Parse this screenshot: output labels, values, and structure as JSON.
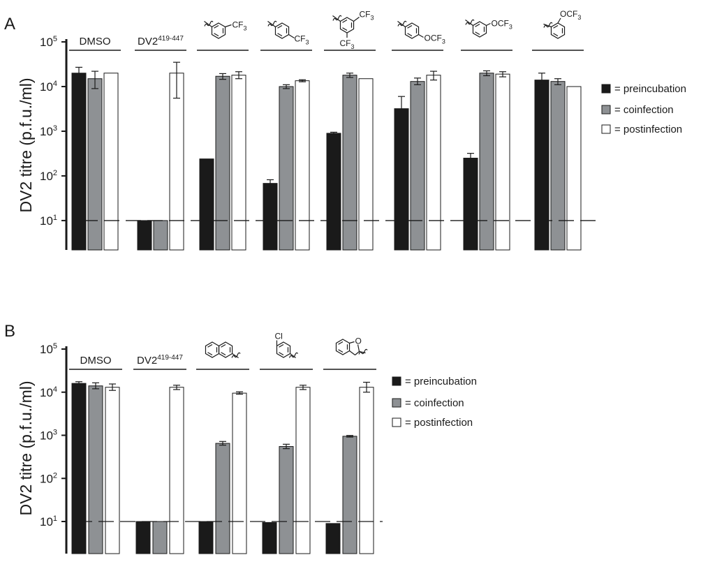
{
  "legend": {
    "preincubation": "= preincubation",
    "coinfection": "= coinfection",
    "postinfection": "= postinfection"
  },
  "colors": {
    "preincubation": "#1a1a1a",
    "coinfection": "#8e9194",
    "postinfection": "#ffffff",
    "axis": "#1a1a1a"
  },
  "chart_data": [
    {
      "type": "bar",
      "panel_label": "A",
      "ylabel": "DV2 titre (p.f.u./ml)",
      "yscale": "log",
      "ylim": [
        2.2,
        100000
      ],
      "yticks": [
        {
          "value": 10,
          "base": "10",
          "exp": "1"
        },
        {
          "value": 100,
          "base": "10",
          "exp": "2"
        },
        {
          "value": 1000,
          "base": "10",
          "exp": "3"
        },
        {
          "value": 10000,
          "base": "10",
          "exp": "4"
        },
        {
          "value": 100000,
          "base": "10",
          "exp": "5"
        }
      ],
      "detection_limit": 10,
      "legend_position": "right",
      "series": [
        {
          "key": "preincubation",
          "name": "= preincubation"
        },
        {
          "key": "coinfection",
          "name": "= coinfection"
        },
        {
          "key": "postinfection",
          "name": "= postinfection"
        }
      ],
      "groups": [
        {
          "label": "DMSO",
          "label_sup": "",
          "structure": "",
          "values": [
            20000,
            15000,
            20000
          ],
          "errors": [
            [
              14000,
              27000
            ],
            [
              9000,
              22000
            ],
            null
          ]
        },
        {
          "label": "DV2",
          "label_sup": "419-447",
          "structure": "",
          "values": [
            10,
            10,
            20000
          ],
          "errors": [
            null,
            null,
            [
              5500,
              35000
            ]
          ]
        },
        {
          "label": "",
          "label_sup": "",
          "structure": "m-CF3-phenyl",
          "struct_text": [
            "CF",
            "3"
          ],
          "values": [
            240,
            17000,
            18000
          ],
          "errors": [
            null,
            [
              14500,
              19500
            ],
            [
              15000,
              21500
            ]
          ]
        },
        {
          "label": "",
          "label_sup": "",
          "structure": "p-CF3-phenyl",
          "struct_text": [
            "CF",
            "3"
          ],
          "values": [
            68,
            10000,
            13500
          ],
          "errors": [
            [
              56,
              82
            ],
            [
              9000,
              11000
            ],
            [
              12800,
              14200
            ]
          ]
        },
        {
          "label": "",
          "label_sup": "",
          "structure": "3,5-bis-CF3-phenyl",
          "struct_text": [
            "CF",
            "3"
          ],
          "values": [
            900,
            18000,
            15000
          ],
          "errors": [
            [
              850,
              950
            ],
            [
              16000,
              20000
            ],
            null
          ]
        },
        {
          "label": "",
          "label_sup": "",
          "structure": "p-OCF3-phenyl",
          "struct_text": [
            "OCF",
            "3"
          ],
          "values": [
            3200,
            13000,
            18000
          ],
          "errors": [
            [
              1800,
              6000
            ],
            [
              11000,
              15500
            ],
            [
              14000,
              22000
            ]
          ]
        },
        {
          "label": "",
          "label_sup": "",
          "structure": "m-OCF3-phenyl",
          "struct_text": [
            "OCF",
            "3"
          ],
          "values": [
            250,
            20000,
            19000
          ],
          "errors": [
            [
              210,
              320
            ],
            [
              17500,
              22500
            ],
            [
              16500,
              21500
            ]
          ]
        },
        {
          "label": "",
          "label_sup": "",
          "structure": "o-OCF3-phenyl",
          "struct_text": [
            "OCF",
            "3"
          ],
          "values": [
            14000,
            13000,
            10000
          ],
          "errors": [
            [
              11000,
              20000
            ],
            [
              11000,
              15000
            ],
            null
          ]
        }
      ]
    },
    {
      "type": "bar",
      "panel_label": "B",
      "ylabel": "DV2 titre (p.f.u./ml)",
      "yscale": "log",
      "ylim": [
        1.8,
        100000
      ],
      "yticks": [
        {
          "value": 10,
          "base": "10",
          "exp": "1"
        },
        {
          "value": 100,
          "base": "10",
          "exp": "2"
        },
        {
          "value": 1000,
          "base": "10",
          "exp": "3"
        },
        {
          "value": 10000,
          "base": "10",
          "exp": "4"
        },
        {
          "value": 100000,
          "base": "10",
          "exp": "5"
        }
      ],
      "detection_limit": 10,
      "legend_position": "right",
      "series": [
        {
          "key": "preincubation",
          "name": "= preincubation"
        },
        {
          "key": "coinfection",
          "name": "= coinfection"
        },
        {
          "key": "postinfection",
          "name": "= postinfection"
        }
      ],
      "groups": [
        {
          "label": "DMSO",
          "label_sup": "",
          "structure": "",
          "values": [
            16000,
            14000,
            13000
          ],
          "errors": [
            [
              15000,
              17500
            ],
            [
              12000,
              16500
            ],
            [
              11000,
              15500
            ]
          ]
        },
        {
          "label": "DV2",
          "label_sup": "419-447",
          "structure": "",
          "values": [
            10,
            10,
            13000
          ],
          "errors": [
            null,
            null,
            [
              11500,
              14500
            ]
          ]
        },
        {
          "label": "",
          "label_sup": "",
          "structure": "2-naphthyl",
          "struct_text": [],
          "values": [
            10,
            650,
            9500
          ],
          "errors": [
            null,
            [
              590,
              720
            ],
            [
              9000,
              10200
            ]
          ]
        },
        {
          "label": "",
          "label_sup": "",
          "structure": "3-chlorophenyl",
          "struct_text": [
            "Cl"
          ],
          "values": [
            9.5,
            550,
            13000
          ],
          "errors": [
            null,
            [
              490,
              620
            ],
            [
              11500,
              14500
            ]
          ]
        },
        {
          "label": "",
          "label_sup": "",
          "structure": "dihydrobenzofuran-2-yl",
          "struct_text": [
            "O"
          ],
          "values": [
            9,
            950,
            13000
          ],
          "errors": [
            null,
            [
              910,
              990
            ],
            [
              10000,
              17000
            ]
          ]
        }
      ]
    }
  ]
}
